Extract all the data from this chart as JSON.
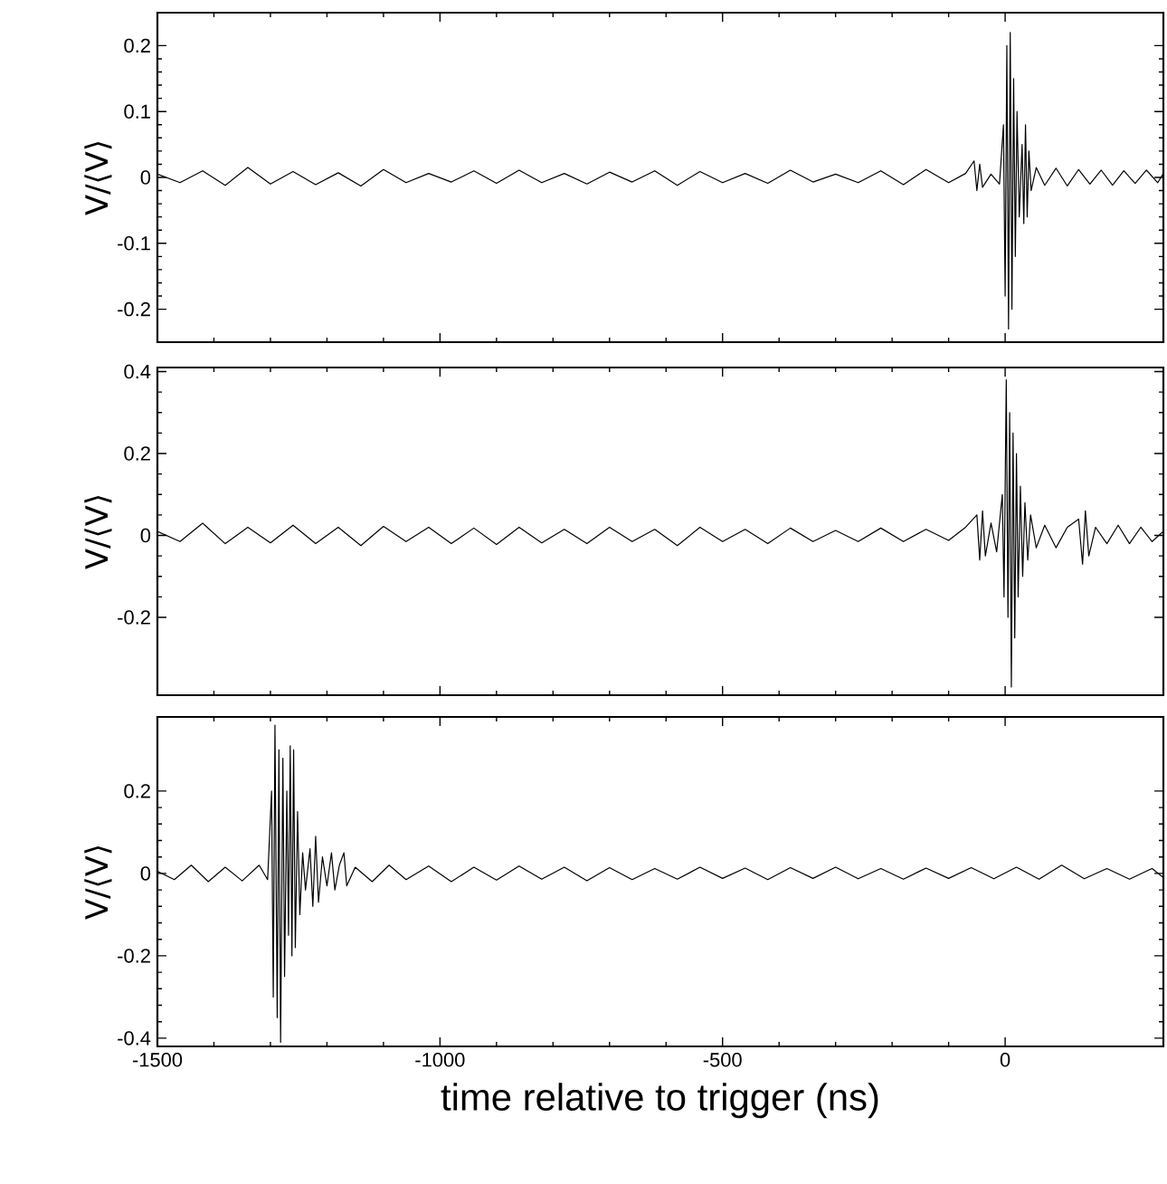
{
  "chart_data": [
    {
      "type": "line",
      "ylabel": "V/⟨V⟩",
      "xlim": [
        -1500,
        280
      ],
      "xticks": [
        -1500,
        -1000,
        -500,
        0
      ],
      "ylim": [
        -0.25,
        0.25
      ],
      "yticks": [
        -0.2,
        -0.1,
        0,
        0.1,
        0.2
      ],
      "tick_labels": "y",
      "marker": "none",
      "line_style": "solid",
      "series": [
        {
          "color": "#000000",
          "x": [
            -1500,
            -1460,
            -1420,
            -1380,
            -1340,
            -1300,
            -1260,
            -1220,
            -1180,
            -1140,
            -1100,
            -1060,
            -1020,
            -980,
            -940,
            -900,
            -860,
            -820,
            -780,
            -740,
            -700,
            -660,
            -620,
            -580,
            -540,
            -500,
            -460,
            -420,
            -380,
            -340,
            -300,
            -260,
            -220,
            -180,
            -140,
            -100,
            -70,
            -55,
            -50,
            -45,
            -40,
            -25,
            -10,
            -3,
            0,
            3,
            6,
            9,
            12,
            15,
            18,
            21,
            25,
            30,
            33,
            36,
            39,
            42,
            46,
            55,
            70,
            90,
            110,
            130,
            150,
            170,
            190,
            210,
            230,
            250,
            270,
            280
          ],
          "values": [
            0.005,
            -0.008,
            0.01,
            -0.012,
            0.015,
            -0.01,
            0.009,
            -0.011,
            0.007,
            -0.013,
            0.012,
            -0.008,
            0.006,
            -0.007,
            0.01,
            -0.009,
            0.011,
            -0.008,
            0.006,
            -0.01,
            0.008,
            -0.007,
            0.01,
            -0.012,
            0.009,
            -0.008,
            0.006,
            -0.009,
            0.011,
            -0.007,
            0.005,
            -0.008,
            0.01,
            -0.011,
            0.012,
            -0.008,
            0.006,
            0.025,
            -0.02,
            0.02,
            -0.015,
            0.005,
            -0.01,
            0.08,
            -0.18,
            0.2,
            -0.23,
            0.22,
            -0.2,
            0.15,
            -0.12,
            0.1,
            -0.06,
            0.05,
            -0.07,
            0.08,
            -0.06,
            0.04,
            -0.02,
            0.015,
            -0.012,
            0.014,
            -0.013,
            0.012,
            -0.01,
            0.011,
            -0.012,
            0.01,
            -0.009,
            0.011,
            -0.008,
            0.006
          ]
        }
      ]
    },
    {
      "type": "line",
      "ylabel": "V/⟨V⟩",
      "xlim": [
        -1500,
        280
      ],
      "xticks": [
        -1500,
        -1000,
        -500,
        0
      ],
      "ylim": [
        -0.39,
        0.41
      ],
      "yticks": [
        -0.2,
        0,
        0.2,
        0.4
      ],
      "tick_labels": "y",
      "marker": "none",
      "line_style": "solid",
      "series": [
        {
          "color": "#000000",
          "x": [
            -1500,
            -1460,
            -1420,
            -1380,
            -1340,
            -1300,
            -1260,
            -1220,
            -1180,
            -1140,
            -1100,
            -1060,
            -1020,
            -980,
            -940,
            -900,
            -860,
            -820,
            -780,
            -740,
            -700,
            -660,
            -620,
            -580,
            -540,
            -500,
            -460,
            -420,
            -380,
            -340,
            -300,
            -260,
            -220,
            -180,
            -140,
            -100,
            -70,
            -50,
            -45,
            -40,
            -35,
            -25,
            -15,
            -5,
            -2,
            2,
            5,
            8,
            11,
            14,
            17,
            20,
            23,
            27,
            31,
            35,
            40,
            45,
            55,
            70,
            90,
            110,
            130,
            137,
            142,
            148,
            160,
            180,
            200,
            220,
            240,
            260,
            280
          ],
          "values": [
            0.01,
            -0.015,
            0.03,
            -0.02,
            0.02,
            -0.018,
            0.025,
            -0.02,
            0.02,
            -0.025,
            0.022,
            -0.015,
            0.02,
            -0.02,
            0.018,
            -0.022,
            0.02,
            -0.018,
            0.015,
            -0.02,
            0.02,
            -0.015,
            0.015,
            -0.025,
            0.02,
            -0.015,
            0.015,
            -0.02,
            0.018,
            -0.015,
            0.012,
            -0.015,
            0.018,
            -0.015,
            0.015,
            -0.012,
            0.02,
            0.05,
            -0.06,
            0.06,
            -0.05,
            0.03,
            -0.04,
            0.1,
            -0.15,
            0.38,
            -0.2,
            0.3,
            -0.37,
            0.25,
            -0.25,
            0.2,
            -0.15,
            0.12,
            -0.1,
            0.08,
            -0.06,
            0.05,
            -0.03,
            0.025,
            -0.03,
            0.02,
            0.04,
            -0.07,
            0.06,
            -0.05,
            0.02,
            -0.02,
            0.025,
            -0.02,
            0.02,
            -0.015,
            0.01
          ]
        }
      ]
    },
    {
      "type": "line",
      "xlabel": "time relative to trigger (ns)",
      "ylabel": "V/⟨V⟩",
      "xlim": [
        -1500,
        280
      ],
      "xticks": [
        -1500,
        -1000,
        -500,
        0
      ],
      "ylim": [
        -0.42,
        0.38
      ],
      "yticks": [
        -0.4,
        -0.2,
        0,
        0.2
      ],
      "marker": "none",
      "line_style": "solid",
      "series": [
        {
          "color": "#000000",
          "x": [
            -1500,
            -1470,
            -1440,
            -1410,
            -1380,
            -1350,
            -1320,
            -1305,
            -1298,
            -1295,
            -1292,
            -1288,
            -1285,
            -1282,
            -1278,
            -1275,
            -1271,
            -1268,
            -1265,
            -1262,
            -1259,
            -1256,
            -1252,
            -1248,
            -1243,
            -1238,
            -1230,
            -1225,
            -1220,
            -1215,
            -1208,
            -1200,
            -1192,
            -1186,
            -1178,
            -1170,
            -1165,
            -1150,
            -1120,
            -1090,
            -1060,
            -1020,
            -980,
            -940,
            -900,
            -860,
            -820,
            -780,
            -740,
            -700,
            -660,
            -620,
            -580,
            -540,
            -500,
            -460,
            -420,
            -380,
            -340,
            -300,
            -260,
            -220,
            -180,
            -140,
            -100,
            -60,
            -20,
            20,
            60,
            100,
            140,
            180,
            220,
            260,
            280
          ],
          "values": [
            0.005,
            -0.015,
            0.02,
            -0.02,
            0.015,
            -0.018,
            0.02,
            -0.015,
            0.2,
            -0.3,
            0.36,
            -0.35,
            0.3,
            -0.41,
            0.28,
            -0.25,
            0.2,
            -0.15,
            0.31,
            -0.2,
            0.3,
            -0.18,
            0.15,
            -0.1,
            0.05,
            -0.04,
            0.06,
            -0.08,
            0.09,
            -0.07,
            0.04,
            -0.03,
            0.05,
            -0.04,
            0.02,
            0.05,
            -0.03,
            0.015,
            -0.02,
            0.02,
            -0.015,
            0.018,
            -0.02,
            0.015,
            -0.016,
            0.018,
            -0.014,
            0.015,
            -0.018,
            0.014,
            -0.015,
            0.012,
            -0.014,
            0.015,
            -0.012,
            0.013,
            -0.015,
            0.014,
            -0.012,
            0.015,
            -0.013,
            0.012,
            -0.014,
            0.013,
            -0.012,
            0.014,
            -0.013,
            0.015,
            -0.014,
            0.02,
            -0.013,
            0.012,
            -0.014,
            0.012,
            -0.01
          ]
        }
      ]
    }
  ]
}
